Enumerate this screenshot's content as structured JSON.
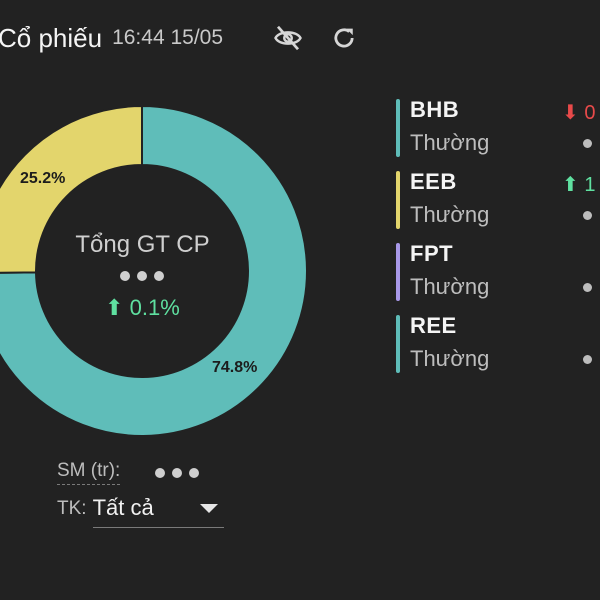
{
  "header": {
    "title": "Cổ phiếu",
    "time": "16:44 15/05"
  },
  "icons": {
    "eye": "eye-off-icon",
    "refresh": "refresh-icon"
  },
  "colors": {
    "teal": "#5fbdb9",
    "yellow": "#e3d56c",
    "purple": "#a898e8",
    "up": "#5fe0a0",
    "down": "#e84a4a",
    "background": "#222222"
  },
  "donut": {
    "center_title": "Tổng GT CP",
    "center_change": "⬆ 0.1%",
    "segments": [
      {
        "label": "74.8%",
        "value": 74.8,
        "color": "#5fbdb9"
      },
      {
        "label": "25.2%",
        "value": 25.2,
        "color": "#e3d56c"
      }
    ]
  },
  "summary": {
    "sm_label": "SM (tr):",
    "tk_label": "TK:",
    "tk_value": "Tất cả"
  },
  "legend": [
    {
      "code": "BHB",
      "type": "Thường",
      "color": "#5fbdb9",
      "change": "⬇ 0",
      "direction": "down"
    },
    {
      "code": "EEB",
      "type": "Thường",
      "color": "#e3d56c",
      "change": "⬆ 1",
      "direction": "up"
    },
    {
      "code": "FPT",
      "type": "Thường",
      "color": "#a898e8",
      "change": "",
      "direction": ""
    },
    {
      "code": "REE",
      "type": "Thường",
      "color": "#5fbdb9",
      "change": "",
      "direction": ""
    }
  ]
}
